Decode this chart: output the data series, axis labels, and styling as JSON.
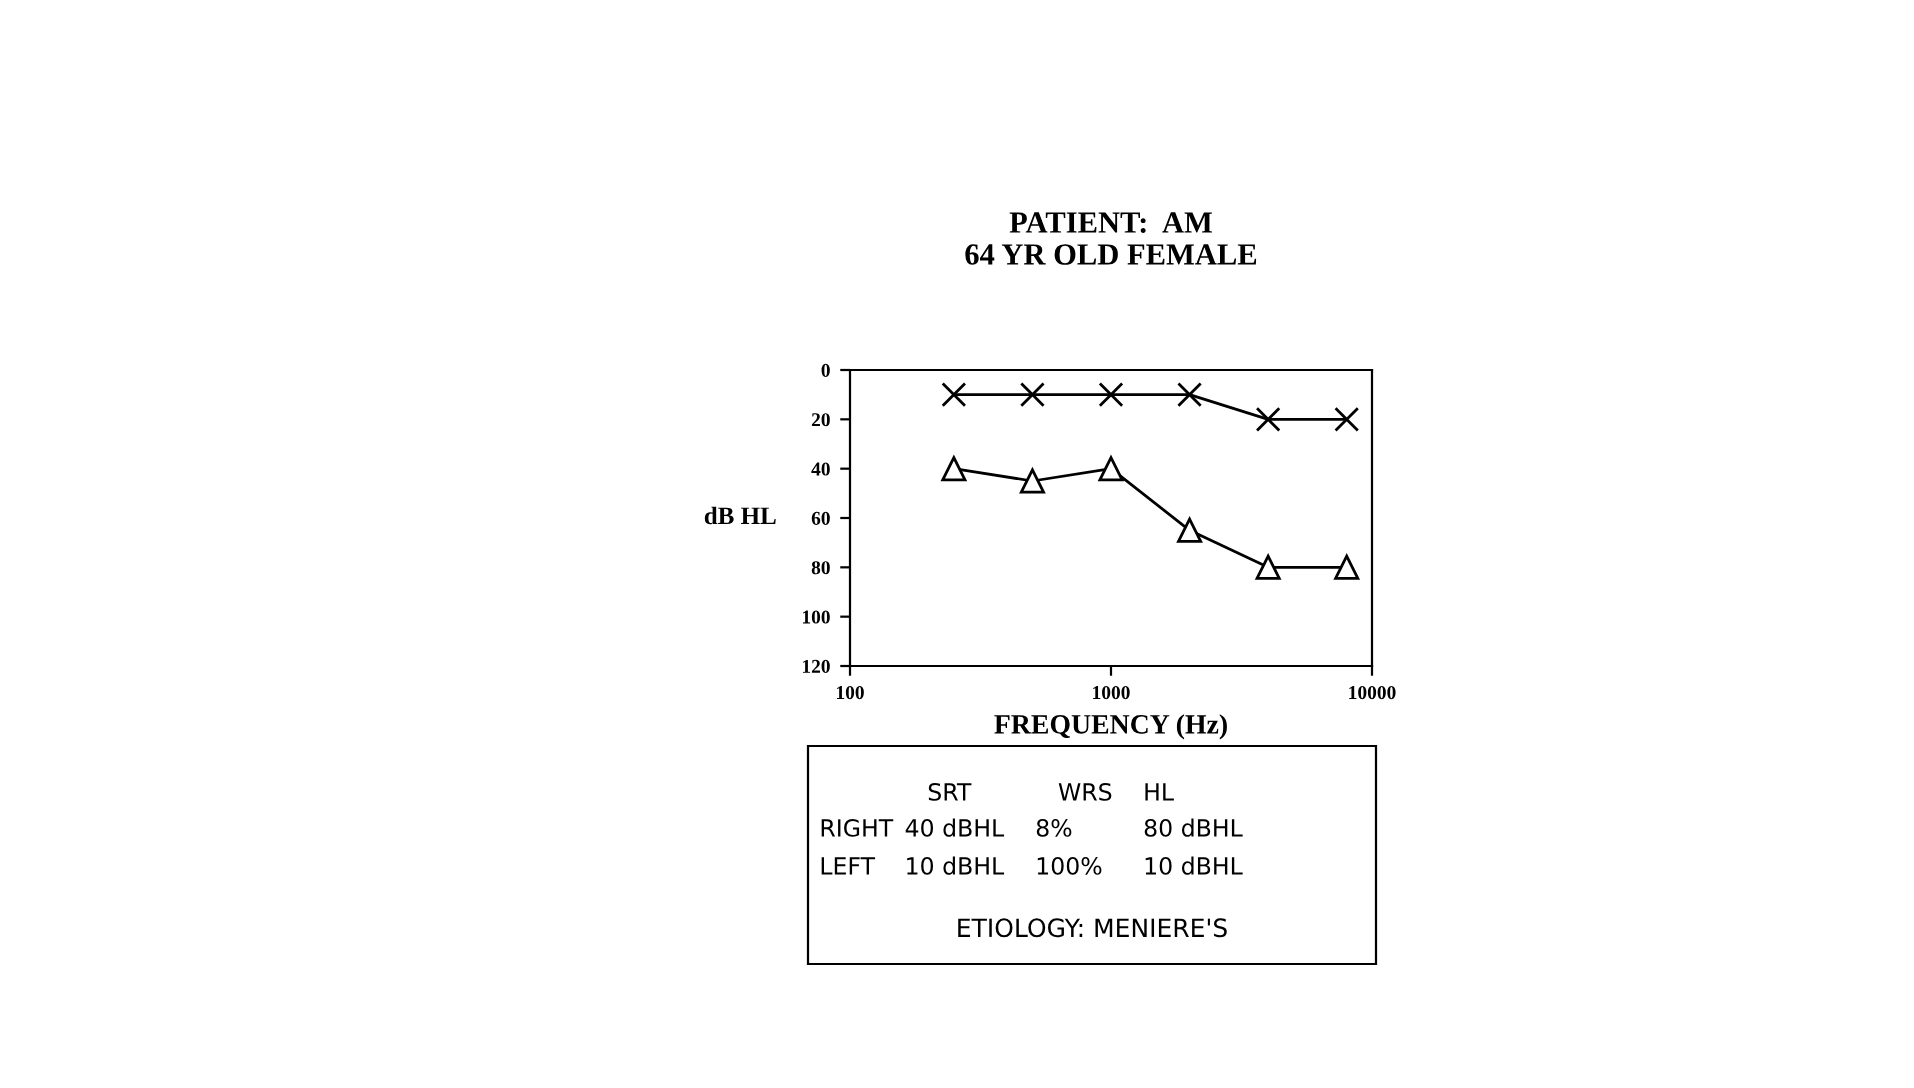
{
  "chart_data": {
    "type": "line",
    "title": "PATIENT:  AM\n64 YR OLD FEMALE",
    "xlabel": "FREQUENCY (Hz)",
    "ylabel": "dB HL",
    "x": [
      250,
      500,
      1000,
      2000,
      4000,
      8000
    ],
    "series": [
      {
        "color": "#000000",
        "marker": "cross",
        "values": [
          10,
          10,
          10,
          10,
          20,
          20
        ]
      },
      {
        "color": "#000000",
        "marker": "triangle",
        "values": [
          40,
          45,
          40,
          65,
          80,
          80
        ]
      }
    ],
    "log": "x",
    "xlim": [
      100,
      10000
    ],
    "xticks": [
      100,
      1000,
      10000
    ],
    "ylim": [
      120,
      0
    ],
    "yticks": [
      0,
      20,
      40,
      60,
      80,
      100,
      120
    ],
    "grid": false,
    "legend": false,
    "line_style": "solid",
    "annotations": [
      "SRT",
      "WRS",
      "HL",
      "RIGHT",
      "40 dBHL",
      "8%",
      "80 dBHL",
      "LEFT",
      "10 dBHL",
      "100%",
      "10 dBHL",
      "ETIOLOGY: MENIERE'S"
    ]
  }
}
